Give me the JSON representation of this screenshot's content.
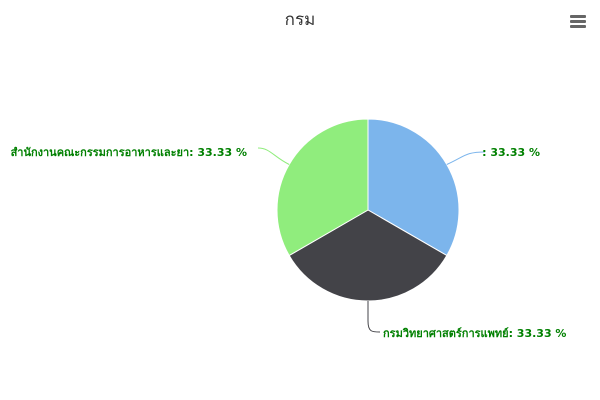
{
  "chart_data": {
    "type": "pie",
    "title": "กรม",
    "slices": [
      {
        "name": "",
        "value": 33.33,
        "label": ": 33.33 %",
        "color": "#7cb5ec"
      },
      {
        "name": "กรมวิทยาศาสตร์การแพทย์",
        "value": 33.33,
        "label": "กรมวิทยาศาสตร์การแพทย์: 33.33 %",
        "color": "#434348"
      },
      {
        "name": "สำนักงานคณะกรรมการอาหารและยา",
        "value": 33.33,
        "label": "สำนักงานคณะกรรมการอาหารและยา: 33.33 %",
        "color": "#90ed7d"
      }
    ],
    "label_color": "#008000",
    "legend": "none"
  },
  "menu": {
    "icon": "hamburger-menu-icon"
  }
}
